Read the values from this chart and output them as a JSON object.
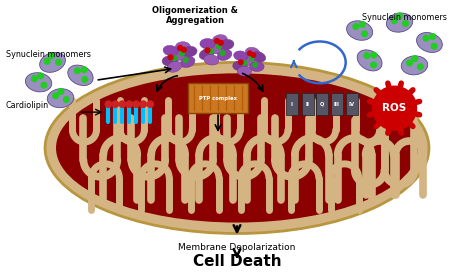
{
  "fig_width": 4.74,
  "fig_height": 2.72,
  "dpi": 100,
  "bg_color": "#ffffff",
  "mito_outer_color": "#d4b483",
  "mito_inner_color": "#8b0000",
  "cristae_color": "#d4b483",
  "title_text": "Cell Death",
  "subtitle_text": "Membrane Depolarization",
  "label_synuclein_left": "Synuclein monomers",
  "label_cardiolipin": "Cardiolipin",
  "label_synuclein_right": "Synuclein monomers",
  "label_oligo": "Oligomerization &\nAggregation",
  "label_ros": "ROS",
  "label_ptp": "PTP complex",
  "label_complexes": [
    "I",
    "II",
    "Q",
    "III",
    "IV"
  ],
  "arrow_color": "#000000",
  "ros_color": "#cc0000",
  "ros_text_color": "#ffffff",
  "monomer_color": "#9b8fc0",
  "cardiolipin_color": "#00bfff",
  "complex_bar_color": "#555566",
  "ptp_color": "#cc7722"
}
